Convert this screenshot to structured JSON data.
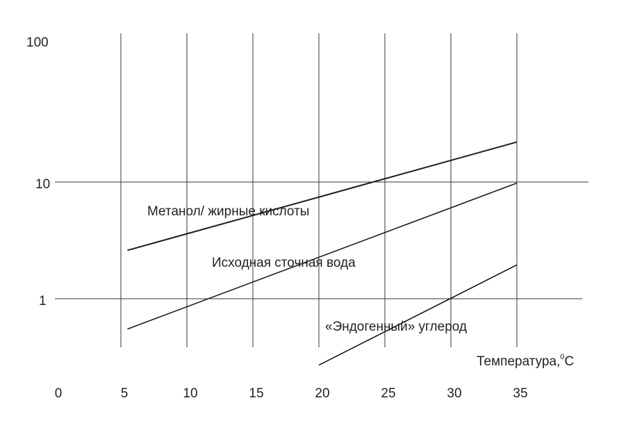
{
  "chart_data": {
    "type": "line",
    "y_scale": "log",
    "grid": true,
    "xlabel": "Температура,",
    "xlabel_unit_sup": "0",
    "xlabel_unit": "C",
    "xlim": [
      0,
      35
    ],
    "ylim": [
      0.35,
      100
    ],
    "x_ticks": [
      "0",
      "5",
      "10",
      "15",
      "20",
      "25",
      "30",
      "35"
    ],
    "y_ticks": [
      {
        "value": 100,
        "label": "100"
      },
      {
        "value": 10,
        "label": "10"
      },
      {
        "value": 1,
        "label": "1"
      }
    ],
    "series": [
      {
        "name": "Метанол/ жирные кислоты",
        "x": [
          5.5,
          35
        ],
        "y": [
          2.6,
          22
        ],
        "color": "#1a1a1a"
      },
      {
        "name": "Исходная сточная вода",
        "x": [
          5.5,
          35
        ],
        "y": [
          0.55,
          9.8
        ],
        "color": "#1a1a1a"
      },
      {
        "name": "«Эндогенный» углерод",
        "x": [
          20,
          35
        ],
        "y": [
          0.27,
          1.95
        ],
        "color": "#1a1a1a"
      }
    ]
  }
}
